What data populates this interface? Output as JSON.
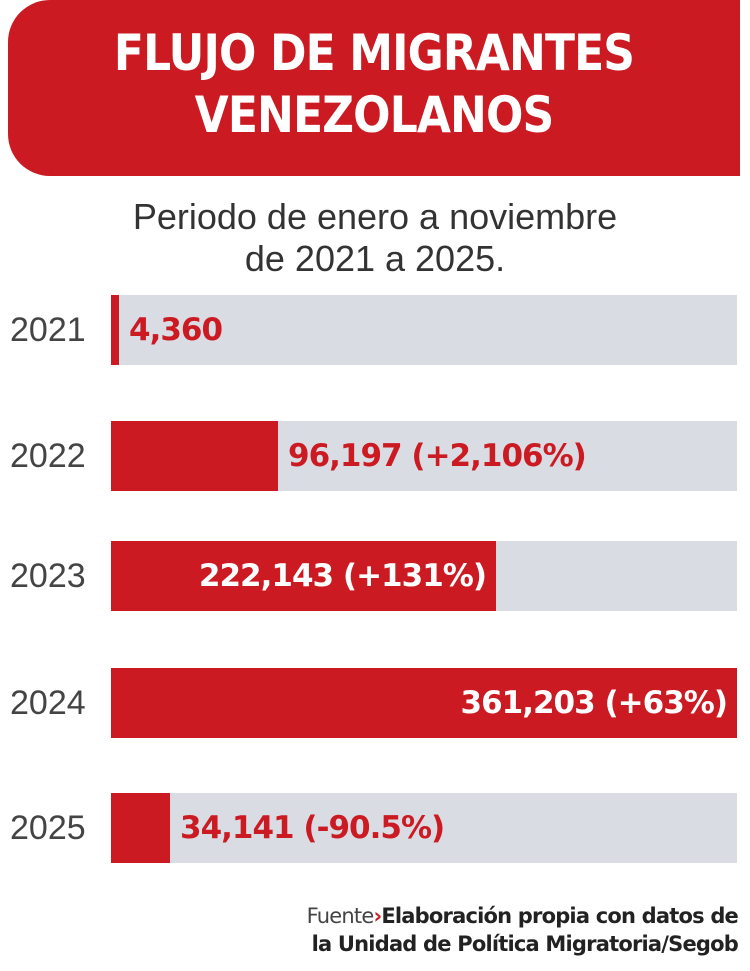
{
  "title": [
    "FLUJO DE MIGRANTES",
    "VENEZOLANOS"
  ],
  "subtitle": [
    "Periodo de enero a noviembre",
    "de 2021 a 2025."
  ],
  "colors": {
    "accent": "#cc1a22",
    "track": "#d9dde3"
  },
  "chart_data": {
    "type": "bar",
    "orientation": "horizontal",
    "title": "FLUJO DE MIGRANTES VENEZOLANOS",
    "subtitle": "Periodo de enero a noviembre de 2021 a 2025.",
    "categories": [
      "2021",
      "2022",
      "2023",
      "2024",
      "2025"
    ],
    "values": [
      4360,
      96197,
      222143,
      361203,
      34141
    ],
    "data_labels": [
      "4,360",
      "96,197 (+2,106%)",
      "222,143 (+131%)",
      "361,203 (+63%)",
      "34,141 (-90.5%)"
    ],
    "xlim": [
      0,
      361203
    ],
    "grid": false
  },
  "source": {
    "label": "Fuente",
    "arrow_icon": "chevron-right-icon",
    "line1": "Elaboración propia con datos de",
    "line2": "la Unidad de Política Migratoria/Segob"
  }
}
